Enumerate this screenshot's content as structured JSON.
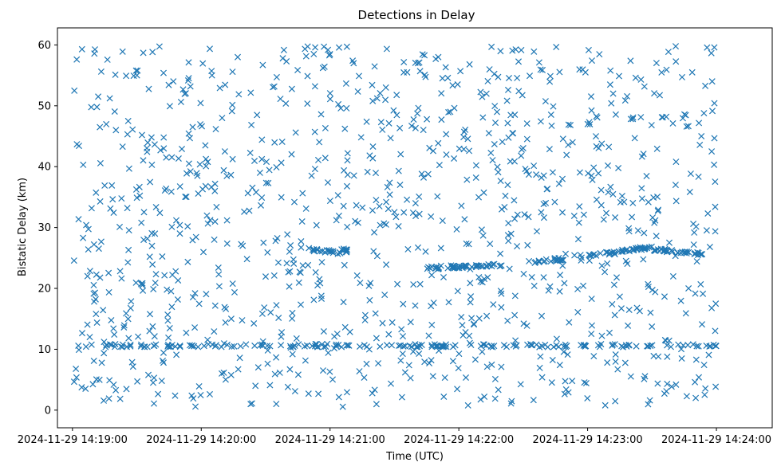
{
  "chart_data": {
    "type": "scatter",
    "title": "Detections in Delay",
    "xlabel": "Time (UTC)",
    "ylabel": "Bistatic Delay (km)",
    "marker": "x",
    "grid": false,
    "legend": null,
    "color": "#1f77b4",
    "x_range": [
      "2024-11-29 14:18:53",
      "2024-11-29 14:24:26"
    ],
    "ylim": [
      -2.9,
      62.8
    ],
    "x_ticks": [
      "2024-11-29 14:19:00",
      "2024-11-29 14:20:00",
      "2024-11-29 14:21:00",
      "2024-11-29 14:22:00",
      "2024-11-29 14:23:00",
      "2024-11-29 14:24:00"
    ],
    "y_ticks": [
      0,
      10,
      20,
      30,
      40,
      50,
      60
    ],
    "time_window": [
      "2024-11-29 14:19:00",
      "2024-11-29 14:24:00"
    ],
    "tracks": [
      {
        "t_start": "2024-11-29 14:19:00",
        "t_end": "2024-11-29 14:24:00",
        "delay_start": 10.6,
        "delay_end": 10.6
      },
      {
        "t_start": "2024-11-29 14:20:50",
        "t_end": "2024-11-29 14:21:05",
        "delay_start": 26.4,
        "delay_end": 25.8
      },
      {
        "t_start": "2024-11-29 14:21:05",
        "t_end": "2024-11-29 14:21:10",
        "delay_start": 26.6,
        "delay_end": 25.8
      },
      {
        "t_start": "2024-11-29 14:21:45",
        "t_end": "2024-11-29 14:22:20",
        "delay_start": 23.3,
        "delay_end": 23.9
      },
      {
        "t_start": "2024-11-29 14:22:35",
        "t_end": "2024-11-29 14:22:50",
        "delay_start": 24.4,
        "delay_end": 24.9
      },
      {
        "t_start": "2024-11-29 14:23:00",
        "t_end": "2024-11-29 14:23:30",
        "delay_start": 25.3,
        "delay_end": 26.8
      },
      {
        "t_start": "2024-11-29 14:23:30",
        "t_end": "2024-11-29 14:23:55",
        "delay_start": 26.4,
        "delay_end": 25.6
      }
    ],
    "scattered_points": [
      [
        "2024-11-29 14:19:02",
        57.6
      ],
      [
        "2024-11-29 14:19:05",
        40.3
      ],
      [
        "2024-11-29 14:19:07",
        22.0
      ],
      [
        "2024-11-29 14:19:10",
        8.1
      ],
      [
        "2024-11-29 14:19:12",
        51.5
      ],
      [
        "2024-11-29 14:19:15",
        36.9
      ],
      [
        "2024-11-29 14:19:17",
        1.9
      ],
      [
        "2024-11-29 14:19:20",
        55.1
      ],
      [
        "2024-11-29 14:19:22",
        30.1
      ],
      [
        "2024-11-29 14:19:25",
        15.9
      ],
      [
        "2024-11-29 14:19:28",
        46.1
      ],
      [
        "2024-11-29 14:19:30",
        34.9
      ],
      [
        "2024-11-29 14:19:33",
        58.7
      ],
      [
        "2024-11-29 14:19:36",
        25.2
      ],
      [
        "2024-11-29 14:19:38",
        5.3
      ],
      [
        "2024-11-29 14:19:41",
        42.7
      ],
      [
        "2024-11-29 14:19:44",
        19.8
      ],
      [
        "2024-11-29 14:19:47",
        54.0
      ],
      [
        "2024-11-29 14:19:50",
        30.4
      ],
      [
        "2024-11-29 14:19:53",
        12.7
      ],
      [
        "2024-11-29 14:19:56",
        46.5
      ],
      [
        "2024-11-29 14:19:59",
        3.9
      ],
      [
        "2024-11-29 14:20:02",
        36.8
      ],
      [
        "2024-11-29 14:20:05",
        55.0
      ],
      [
        "2024-11-29 14:20:08",
        23.4
      ],
      [
        "2024-11-29 14:20:11",
        42.5
      ],
      [
        "2024-11-29 14:20:14",
        15.0
      ],
      [
        "2024-11-29 14:20:17",
        58.0
      ],
      [
        "2024-11-29 14:20:20",
        32.6
      ],
      [
        "2024-11-29 14:20:23",
        1.0
      ],
      [
        "2024-11-29 14:20:26",
        48.5
      ],
      [
        "2024-11-29 14:20:29",
        27.5
      ],
      [
        "2024-11-29 14:20:32",
        4.1
      ],
      [
        "2024-11-29 14:20:35",
        39.9
      ],
      [
        "2024-11-29 14:20:38",
        57.8
      ],
      [
        "2024-11-29 14:20:41",
        20.3
      ],
      [
        "2024-11-29 14:20:44",
        45.6
      ],
      [
        "2024-11-29 14:20:47",
        31.0
      ],
      [
        "2024-11-29 14:20:50",
        2.7
      ],
      [
        "2024-11-29 14:20:53",
        53.2
      ],
      [
        "2024-11-29 14:20:56",
        18.3
      ],
      [
        "2024-11-29 14:20:59",
        37.4
      ],
      [
        "2024-11-29 14:21:02",
        12.1
      ],
      [
        "2024-11-29 14:21:05",
        49.6
      ],
      [
        "2024-11-29 14:21:08",
        30.1
      ],
      [
        "2024-11-29 14:21:11",
        57.0
      ],
      [
        "2024-11-29 14:21:14",
        20.9
      ],
      [
        "2024-11-29 14:21:17",
        7.6
      ],
      [
        "2024-11-29 14:21:20",
        43.3
      ],
      [
        "2024-11-29 14:21:23",
        33.5
      ],
      [
        "2024-11-29 14:21:26",
        53.0
      ],
      [
        "2024-11-29 14:21:29",
        14.4
      ],
      [
        "2024-11-29 14:21:32",
        39.3
      ],
      [
        "2024-11-29 14:21:35",
        6.2
      ],
      [
        "2024-11-29 14:21:38",
        46.7
      ],
      [
        "2024-11-29 14:21:41",
        26.7
      ],
      [
        "2024-11-29 14:21:44",
        58.3
      ],
      [
        "2024-11-29 14:21:47",
        17.1
      ],
      [
        "2024-11-29 14:21:50",
        35.1
      ],
      [
        "2024-11-29 14:21:53",
        2.2
      ],
      [
        "2024-11-29 14:21:56",
        49.0
      ],
      [
        "2024-11-29 14:21:59",
        29.7
      ],
      [
        "2024-11-29 14:22:02",
        12.3
      ],
      [
        "2024-11-29 14:22:05",
        56.8
      ],
      [
        "2024-11-29 14:22:08",
        38.2
      ],
      [
        "2024-11-29 14:22:11",
        21.0
      ],
      [
        "2024-11-29 14:22:14",
        45.5
      ],
      [
        "2024-11-29 14:22:17",
        5.1
      ],
      [
        "2024-11-29 14:22:20",
        33.0
      ],
      [
        "2024-11-29 14:22:23",
        52.6
      ],
      [
        "2024-11-29 14:22:26",
        15.6
      ],
      [
        "2024-11-29 14:22:29",
        41.8
      ],
      [
        "2024-11-29 14:22:32",
        27.1
      ],
      [
        "2024-11-29 14:22:35",
        58.9
      ],
      [
        "2024-11-29 14:22:38",
        8.8
      ],
      [
        "2024-11-29 14:22:41",
        36.3
      ],
      [
        "2024-11-29 14:22:44",
        49.9
      ],
      [
        "2024-11-29 14:22:47",
        19.5
      ],
      [
        "2024-11-29 14:22:50",
        3.4
      ],
      [
        "2024-11-29 14:22:53",
        44.0
      ],
      [
        "2024-11-29 14:22:56",
        30.8
      ],
      [
        "2024-11-29 14:22:59",
        55.5
      ],
      [
        "2024-11-29 14:23:02",
        13.9
      ],
      [
        "2024-11-29 14:23:05",
        38.9
      ],
      [
        "2024-11-29 14:23:08",
        22.7
      ],
      [
        "2024-11-29 14:23:11",
        50.4
      ],
      [
        "2024-11-29 14:23:14",
        6.7
      ],
      [
        "2024-11-29 14:23:17",
        34.2
      ],
      [
        "2024-11-29 14:23:20",
        57.4
      ],
      [
        "2024-11-29 14:23:23",
        16.8
      ],
      [
        "2024-11-29 14:23:26",
        42.1
      ],
      [
        "2024-11-29 14:23:29",
        1.6
      ],
      [
        "2024-11-29 14:23:32",
        28.6
      ],
      [
        "2024-11-29 14:23:35",
        48.1
      ],
      [
        "2024-11-29 14:23:38",
        11.4
      ],
      [
        "2024-11-29 14:23:41",
        37.0
      ],
      [
        "2024-11-29 14:23:44",
        54.7
      ],
      [
        "2024-11-29 14:23:47",
        20.0
      ],
      [
        "2024-11-29 14:23:50",
        4.6
      ],
      [
        "2024-11-29 14:23:53",
        45.0
      ],
      [
        "2024-11-29 14:23:56",
        32.3
      ],
      [
        "2024-11-29 14:23:59",
        59.6
      ]
    ]
  }
}
